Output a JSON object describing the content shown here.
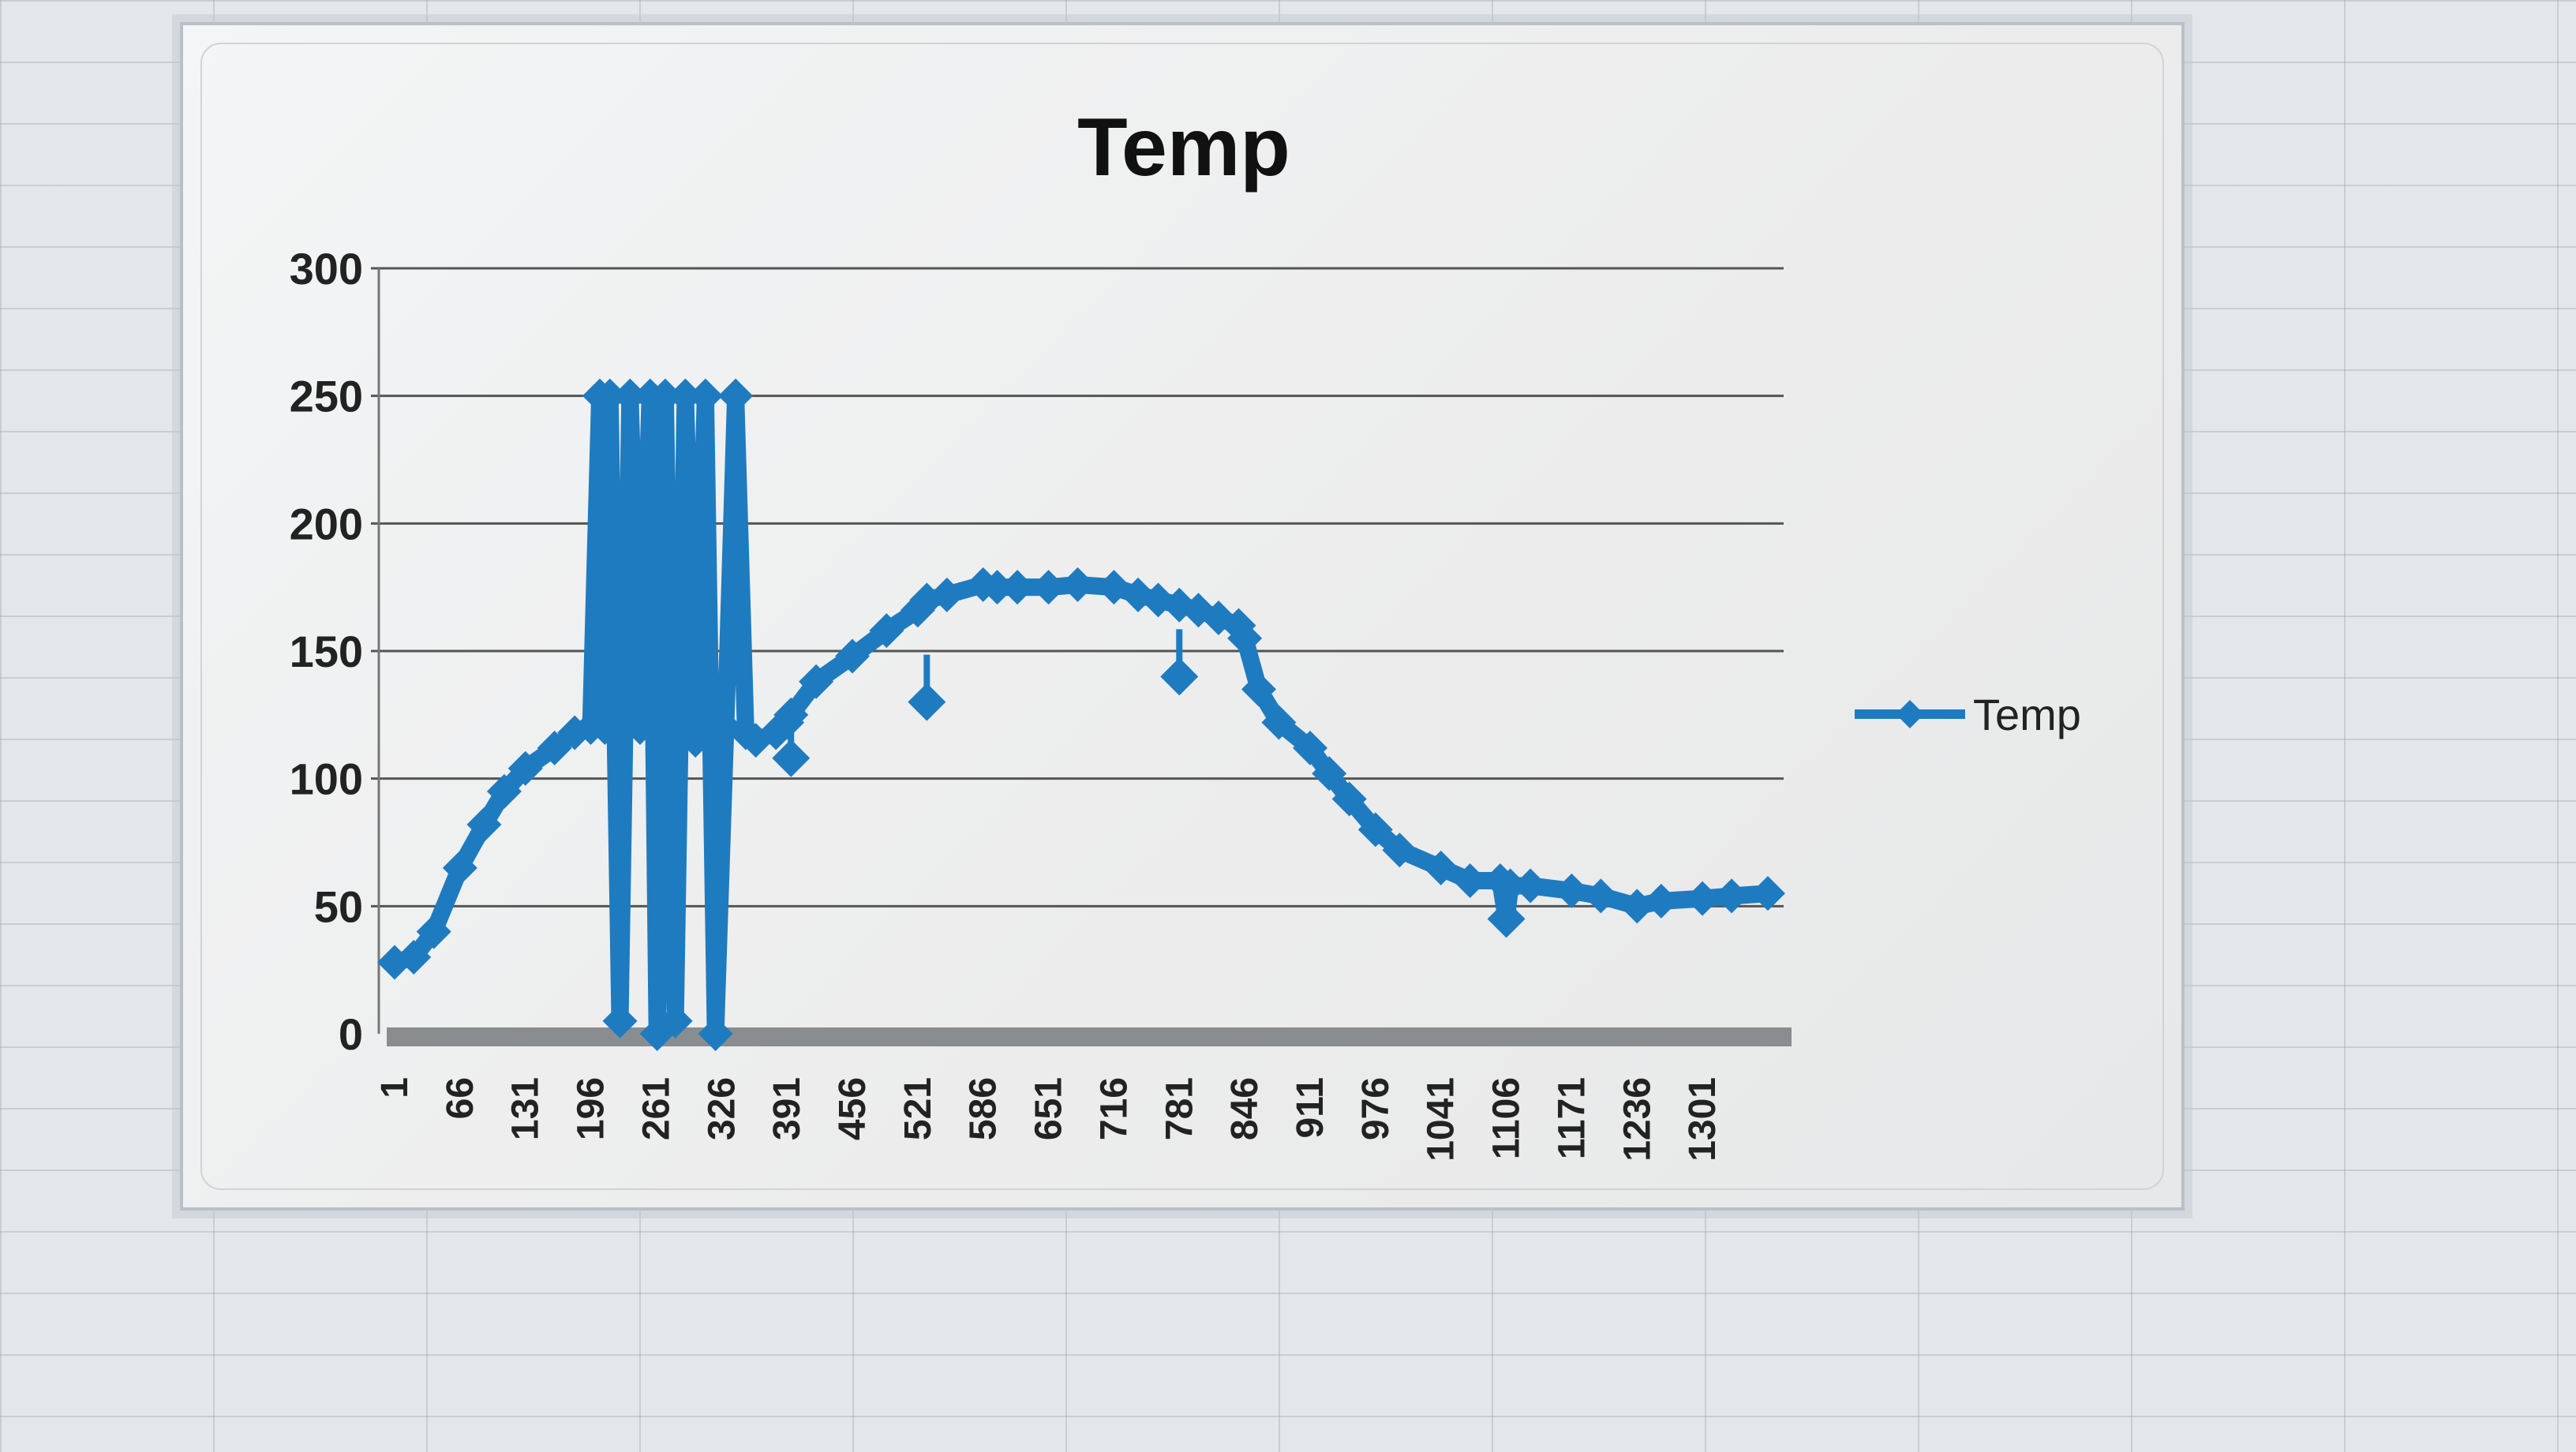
{
  "chart_data": {
    "type": "line",
    "title": "Temp",
    "xlabel": "",
    "ylabel": "",
    "ylim": [
      0,
      300
    ],
    "xlim": [
      1,
      1366
    ],
    "yticks": [
      0,
      50,
      100,
      150,
      200,
      250,
      300
    ],
    "xticks": [
      "1",
      "66",
      "131",
      "196",
      "261",
      "326",
      "391",
      "456",
      "521",
      "586",
      "651",
      "716",
      "781",
      "846",
      "911",
      "976",
      "1041",
      "1106",
      "1171",
      "1236",
      "1301"
    ],
    "grid": true,
    "legend_position": "right",
    "series": [
      {
        "name": "Temp",
        "color": "#1f7bc0",
        "marker": "diamond",
        "x": [
          1,
          20,
          40,
          66,
          90,
          110,
          131,
          160,
          180,
          196,
          205,
          210,
          215,
          225,
          235,
          245,
          255,
          262,
          270,
          280,
          290,
          300,
          310,
          320,
          330,
          340,
          350,
          360,
          380,
          391,
          395,
          420,
          456,
          490,
          521,
          530,
          550,
          586,
          600,
          620,
          651,
          680,
          716,
          740,
          760,
          781,
          800,
          820,
          840,
          846,
          860,
          880,
          911,
          930,
          950,
          976,
          1000,
          1041,
          1070,
          1100,
          1106,
          1110,
          1130,
          1171,
          1200,
          1236,
          1260,
          1301,
          1330,
          1366
        ],
        "y": [
          28,
          30,
          40,
          65,
          82,
          95,
          104,
          112,
          118,
          120,
          250,
          120,
          250,
          5,
          250,
          120,
          250,
          0,
          250,
          5,
          250,
          115,
          250,
          0,
          120,
          250,
          118,
          115,
          118,
          122,
          125,
          138,
          148,
          158,
          166,
          170,
          172,
          176,
          175,
          175,
          175,
          176,
          175,
          172,
          170,
          168,
          166,
          163,
          160,
          155,
          135,
          122,
          112,
          102,
          92,
          80,
          72,
          65,
          60,
          60,
          45,
          58,
          58,
          56,
          54,
          50,
          52,
          53,
          54,
          55
        ]
      }
    ],
    "annotations_outliers": [
      {
        "x": 395,
        "y": 108
      },
      {
        "x": 530,
        "y": 130
      },
      {
        "x": 781,
        "y": 140
      },
      {
        "x": 1106,
        "y": 45
      }
    ]
  }
}
